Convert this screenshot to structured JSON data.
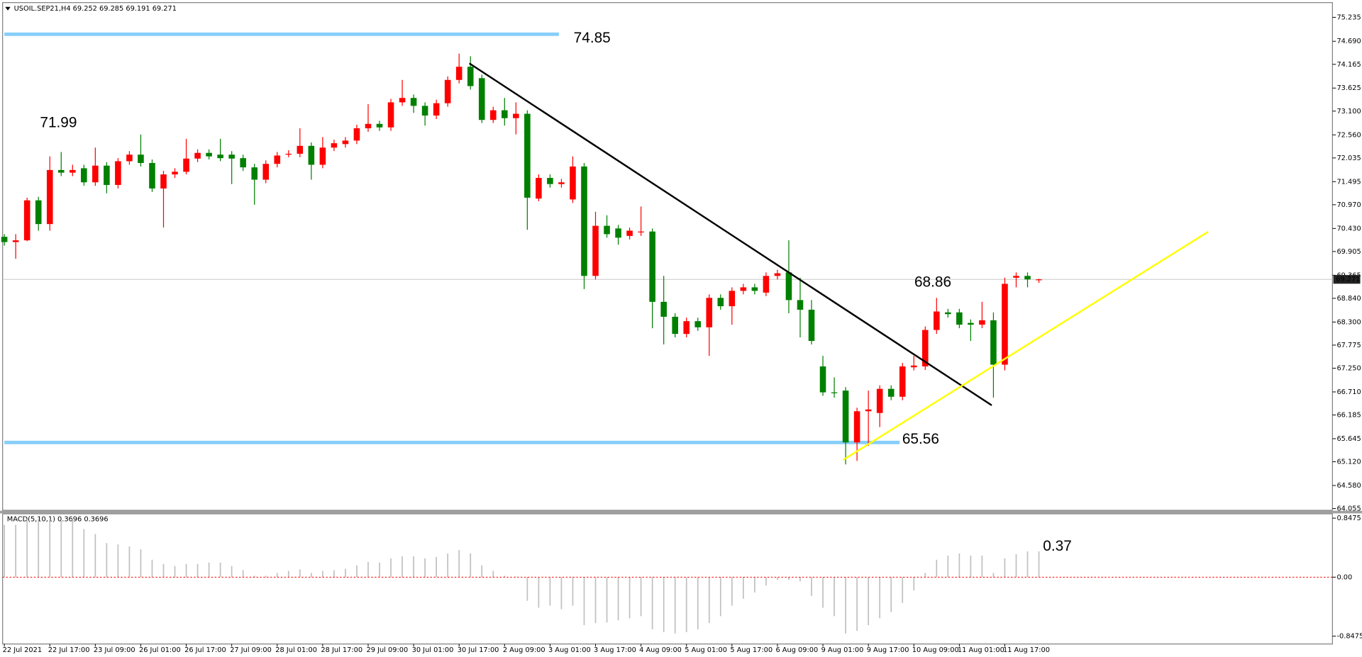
{
  "chart_data": [
    {
      "type": "candlestick",
      "title": "USOIL.SEP21,H4 69.252 69.285 69.191 69.271",
      "categories": [
        "22 Jul 2021",
        null,
        null,
        null,
        "22 Jul 17:00",
        null,
        null,
        null,
        "23 Jul 09:00",
        null,
        null,
        null,
        "26 Jul 01:00",
        null,
        null,
        null,
        "26 Jul 17:00",
        null,
        null,
        null,
        "27 Jul 09:00",
        null,
        null,
        null,
        "28 Jul 01:00",
        null,
        null,
        null,
        "28 Jul 17:00",
        null,
        null,
        null,
        "29 Jul 09:00",
        null,
        null,
        null,
        "30 Jul 01:00",
        null,
        null,
        null,
        "30 Jul 17:00",
        null,
        null,
        null,
        "2 Aug 09:00",
        null,
        null,
        null,
        "3 Aug 01:00",
        null,
        null,
        null,
        "3 Aug 17:00",
        null,
        null,
        null,
        "4 Aug 09:00",
        null,
        null,
        null,
        "5 Aug 01:00",
        null,
        null,
        null,
        "5 Aug 17:00",
        null,
        null,
        null,
        "6 Aug 09:00",
        null,
        null,
        null,
        "9 Aug 01:00",
        null,
        null,
        null,
        "9 Aug 17:00",
        null,
        null,
        null,
        "10 Aug 09:00",
        null,
        null,
        null,
        "11 Aug 01:00",
        null,
        null,
        null,
        "11 Aug 17:00",
        null,
        null,
        null
      ],
      "open": [
        70.24,
        70.12,
        70.16,
        71.07,
        70.53,
        71.76,
        71.7,
        71.8,
        71.48,
        71.86,
        71.42,
        71.96,
        72.11,
        71.92,
        71.34,
        71.66,
        71.72,
        72.02,
        72.15,
        72.11,
        72.11,
        72.03,
        71.82,
        71.54,
        71.9,
        72.11,
        72.13,
        72.31,
        71.88,
        72.27,
        72.35,
        72.43,
        72.71,
        72.81,
        72.73,
        73.3,
        73.4,
        73.22,
        73.0,
        73.28,
        73.81,
        74.11,
        73.85,
        72.9,
        73.12,
        72.94,
        73.04,
        71.11,
        71.58,
        71.44,
        71.09,
        71.84,
        69.35,
        70.49,
        70.43,
        70.26,
        70.34,
        70.36,
        68.76,
        68.42,
        68.03,
        68.32,
        68.18,
        68.85,
        68.66,
        69.01,
        69.09,
        68.97,
        69.35,
        69.43,
        68.8,
        68.58,
        67.29,
        66.7,
        66.74,
        65.56,
        66.27,
        66.23,
        66.78,
        66.6,
        67.27,
        67.29,
        68.12,
        68.52,
        68.52,
        68.28,
        68.24,
        68.34,
        67.33,
        69.31,
        69.35,
        69.252
      ],
      "high": [
        70.3,
        70.3,
        71.13,
        71.15,
        72.07,
        72.17,
        71.88,
        71.88,
        72.27,
        71.94,
        72.03,
        72.19,
        72.57,
        72.0,
        71.74,
        71.8,
        72.47,
        72.23,
        72.23,
        72.47,
        72.19,
        72.11,
        71.9,
        71.98,
        72.17,
        72.21,
        72.71,
        72.39,
        72.51,
        72.45,
        72.51,
        72.79,
        73.26,
        72.88,
        73.38,
        73.81,
        73.48,
        73.3,
        73.36,
        73.89,
        74.41,
        74.35,
        73.93,
        73.2,
        73.4,
        73.3,
        73.12,
        71.66,
        71.66,
        71.56,
        72.07,
        71.92,
        70.81,
        70.73,
        70.51,
        70.45,
        70.93,
        70.43,
        69.35,
        68.5,
        68.4,
        68.4,
        68.93,
        68.93,
        69.09,
        69.17,
        69.17,
        69.43,
        69.49,
        70.16,
        69.31,
        68.8,
        67.53,
        67.04,
        66.82,
        66.35,
        66.74,
        66.86,
        66.86,
        67.37,
        67.53,
        68.2,
        68.85,
        68.6,
        68.6,
        68.36,
        68.76,
        68.52,
        69.31,
        69.43,
        69.43,
        69.285
      ],
      "low": [
        70.04,
        69.74,
        70.14,
        70.38,
        70.38,
        71.62,
        71.62,
        71.4,
        71.4,
        71.23,
        71.34,
        71.88,
        71.84,
        71.26,
        70.45,
        71.58,
        71.66,
        71.94,
        72.0,
        71.96,
        71.44,
        71.74,
        70.97,
        71.46,
        71.82,
        72.05,
        72.05,
        71.54,
        71.8,
        72.19,
        72.27,
        72.35,
        72.63,
        72.65,
        72.65,
        73.22,
        73.06,
        72.77,
        72.92,
        73.2,
        73.73,
        73.59,
        72.83,
        72.83,
        72.77,
        72.57,
        70.4,
        71.05,
        71.36,
        71.36,
        71.01,
        69.05,
        69.27,
        70.22,
        70.06,
        70.18,
        70.26,
        68.16,
        67.79,
        67.95,
        67.95,
        68.1,
        67.53,
        68.58,
        68.24,
        68.93,
        68.93,
        68.89,
        69.27,
        68.5,
        67.95,
        67.79,
        66.62,
        66.58,
        65.06,
        65.14,
        65.48,
        65.91,
        66.52,
        66.52,
        67.2,
        67.21,
        68.03,
        68.4,
        68.16,
        67.87,
        68.16,
        66.58,
        67.2,
        69.09,
        69.09,
        69.191
      ],
      "close": [
        70.12,
        70.16,
        71.07,
        70.53,
        71.76,
        71.7,
        71.76,
        71.48,
        71.86,
        71.42,
        71.96,
        72.11,
        71.92,
        71.34,
        71.66,
        71.72,
        72.02,
        72.15,
        72.07,
        72.03,
        72.02,
        71.82,
        71.54,
        71.9,
        72.09,
        72.13,
        72.31,
        71.88,
        72.27,
        72.37,
        72.43,
        72.71,
        72.81,
        72.73,
        73.3,
        73.4,
        73.22,
        73.0,
        73.28,
        73.81,
        74.11,
        73.67,
        72.9,
        73.12,
        72.94,
        73.04,
        71.13,
        71.58,
        71.44,
        71.48,
        71.84,
        69.35,
        70.49,
        70.3,
        70.22,
        70.38,
        70.36,
        68.76,
        68.42,
        68.03,
        68.32,
        68.18,
        68.85,
        68.66,
        69.01,
        69.09,
        69.01,
        69.35,
        69.41,
        68.8,
        68.58,
        67.87,
        66.7,
        66.68,
        65.56,
        66.27,
        66.31,
        66.78,
        66.6,
        67.29,
        67.31,
        68.12,
        68.54,
        68.48,
        68.24,
        68.24,
        68.34,
        67.33,
        69.17,
        69.35,
        69.27,
        69.271
      ],
      "up_color": "#ff0000",
      "down_color": "#008000",
      "ylim": [
        64.015,
        75.57
      ],
      "yticks": [
        75.235,
        {
          "value": 74.69,
          "label": "74.690"
        },
        74.165,
        73.625,
        {
          "value": 73.1,
          "label": "73.100"
        },
        {
          "value": 72.56,
          "label": "72.560"
        },
        72.035,
        71.495,
        {
          "value": 70.97,
          "label": "70.970"
        },
        {
          "value": 70.43,
          "label": "70.430"
        },
        69.905,
        69.365,
        {
          "value": 68.84,
          "label": "68.840"
        },
        {
          "value": 68.3,
          "label": "68.300"
        },
        67.775,
        {
          "value": 67.25,
          "label": "67.250"
        },
        {
          "value": 66.71,
          "label": "66.710"
        },
        66.185,
        65.645,
        {
          "value": 65.12,
          "label": "65.120"
        },
        {
          "value": 64.58,
          "label": "64.580"
        },
        64.055
      ],
      "current_price": 69.271,
      "levels": [
        74.85,
        65.56
      ],
      "level_color": "#87cefa",
      "annotations": [
        71.99,
        68.86
      ],
      "annotation_color": "#ff0000"
    },
    {
      "type": "bar",
      "title": "MACD(5,10,1) 0.3696 0.3696",
      "values": [
        0.75,
        0.75,
        0.83,
        0.83,
        0.83,
        0.81,
        0.83,
        0.69,
        0.62,
        0.49,
        0.47,
        0.44,
        0.4,
        0.25,
        0.19,
        0.16,
        0.19,
        0.19,
        0.21,
        0.21,
        0.16,
        0.1,
        0.02,
        0.02,
        0.06,
        0.09,
        0.11,
        0.06,
        0.09,
        0.1,
        0.12,
        0.17,
        0.22,
        0.21,
        0.27,
        0.3,
        0.3,
        0.27,
        0.29,
        0.34,
        0.39,
        0.34,
        0.17,
        0.09,
        0.02,
        0.01,
        -0.34,
        -0.44,
        -0.41,
        -0.46,
        -0.41,
        -0.69,
        -0.66,
        -0.65,
        -0.62,
        -0.59,
        -0.56,
        -0.75,
        -0.79,
        -0.81,
        -0.79,
        -0.75,
        -0.66,
        -0.56,
        -0.41,
        -0.31,
        -0.22,
        -0.12,
        -0.04,
        -0.04,
        -0.06,
        -0.27,
        -0.44,
        -0.56,
        -0.81,
        -0.77,
        -0.69,
        -0.59,
        -0.5,
        -0.37,
        -0.19,
        0.06,
        0.25,
        0.31,
        0.34,
        0.31,
        0.31,
        0.06,
        0.27,
        0.33,
        0.37,
        0.3696
      ],
      "color": "#c0c0c0",
      "zero_color": "#ff0000",
      "ylim": [
        -0.96,
        0.91
      ],
      "yticks": [
        0.8475,
        {
          "value": 0,
          "label": "0.00"
        },
        -0.8475
      ],
      "annotations": [
        0.37
      ],
      "annotation_color": "#ff0000"
    }
  ]
}
